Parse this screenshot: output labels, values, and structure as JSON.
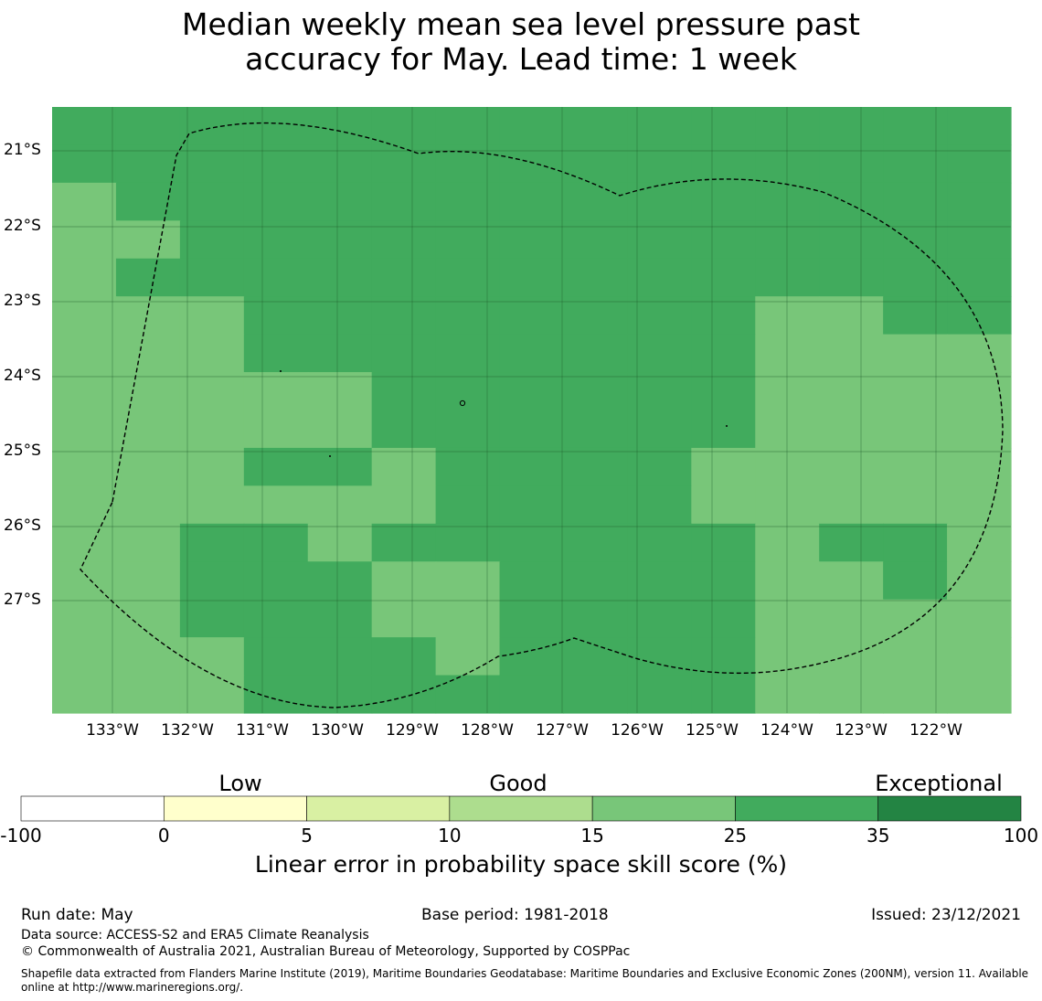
{
  "title": {
    "line1": "Median weekly mean sea level pressure past",
    "line2": "accuracy for May. Lead time: 1 week"
  },
  "map": {
    "lat_labels": [
      "21°S",
      "22°S",
      "23°S",
      "24°S",
      "25°S",
      "26°S",
      "27°S"
    ],
    "lon_labels": [
      "133°W",
      "132°W",
      "131°W",
      "130°W",
      "129°W",
      "128°W",
      "127°W",
      "126°W",
      "125°W",
      "124°W",
      "123°W",
      "122°W"
    ],
    "skill_grid_legend": {
      "A": "25-35",
      "B": "15-25"
    },
    "skill_grid": [
      "AAAAAAAAAAAAAAA",
      "AAAAAAAAAAAAAAA",
      "BAAAAAAAAAAAAAA",
      "BBAAAAAAAAAAAAA",
      "BAAAAAAAAAAAAAA",
      "BBBAAAAAAAABBAA",
      "BBBAAAAAAAABBBB",
      "BBBBBAAAAAABBBB",
      "BBBBBAAAAAABBBB",
      "BBBAABAAAABBBBB",
      "BBBBBBAAAABBBBB",
      "BBAABAAAAAABAAB",
      "BBAAABBAAAABBAB",
      "BBAAABBAAAABBBB",
      "BBBAAABAAAABBBB",
      "BBBAAAAAAAABBBB"
    ],
    "colors": {
      "A": "#41ab5d",
      "B": "#78c679"
    }
  },
  "colorbar": {
    "words": [
      "Low",
      "Good",
      "Exceptional"
    ],
    "ticks": [
      "-100",
      "0",
      "5",
      "10",
      "15",
      "25",
      "35",
      "100"
    ],
    "colors": [
      "#ffffff",
      "#ffffcc",
      "#d9f0a3",
      "#addd8e",
      "#78c679",
      "#41ab5d",
      "#238443"
    ],
    "caption": "Linear error in probability space skill score (%)"
  },
  "footer": {
    "run_date": "Run date: May",
    "base_period": "Base period: 1981-2018",
    "issued": "Issued: 23/12/2021",
    "data_source": "Data source: ACCESS-S2 and ERA5 Climate Reanalysis",
    "copyright": "© Commonwealth of Australia 2021, Australian Bureau of Meteorology, Supported by COSPPac",
    "shapefile_line1": "Shapefile data extracted from Flanders Marine Institute (2019), Maritime Boundaries Geodatabase: Maritime Boundaries and Exclusive Economic Zones (200NM), version 11. Available",
    "shapefile_line2": "online at http://www.marineregions.org/."
  }
}
